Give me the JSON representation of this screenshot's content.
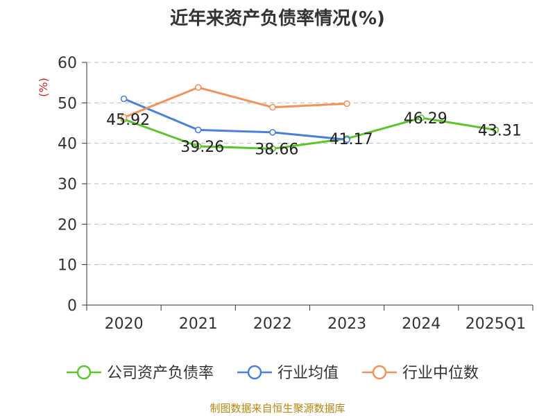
{
  "chart_data": {
    "type": "line",
    "title": "近年来资产负债率情况(%)",
    "ylabel": "(%)",
    "xlabel": "",
    "categories": [
      "2020",
      "2021",
      "2022",
      "2023",
      "2024",
      "2025Q1"
    ],
    "ylim": [
      0,
      60
    ],
    "yticks": [
      0,
      10,
      20,
      30,
      40,
      50,
      60
    ],
    "grid": true,
    "legend_position": "bottom",
    "series": [
      {
        "name": "公司资产负债率",
        "color": "#5bc52a",
        "values": [
          45.92,
          39.26,
          38.66,
          41.17,
          46.29,
          43.31
        ],
        "labels": [
          "45.92",
          "39.26",
          "38.66",
          "41.17",
          "46.29",
          "43.31"
        ]
      },
      {
        "name": "行业均值",
        "color": "#4a7fdd",
        "values": [
          51.0,
          43.3,
          42.7,
          40.9,
          null,
          null
        ]
      },
      {
        "name": "行业中位数",
        "color": "#f5915a",
        "values": [
          46.4,
          53.8,
          48.9,
          49.8,
          null,
          null
        ]
      }
    ],
    "source": "制图数据来自恒生聚源数据库"
  },
  "colors": {
    "unit_label": "#d62020",
    "axis": "#333333",
    "grid": "#bbbbbb"
  }
}
